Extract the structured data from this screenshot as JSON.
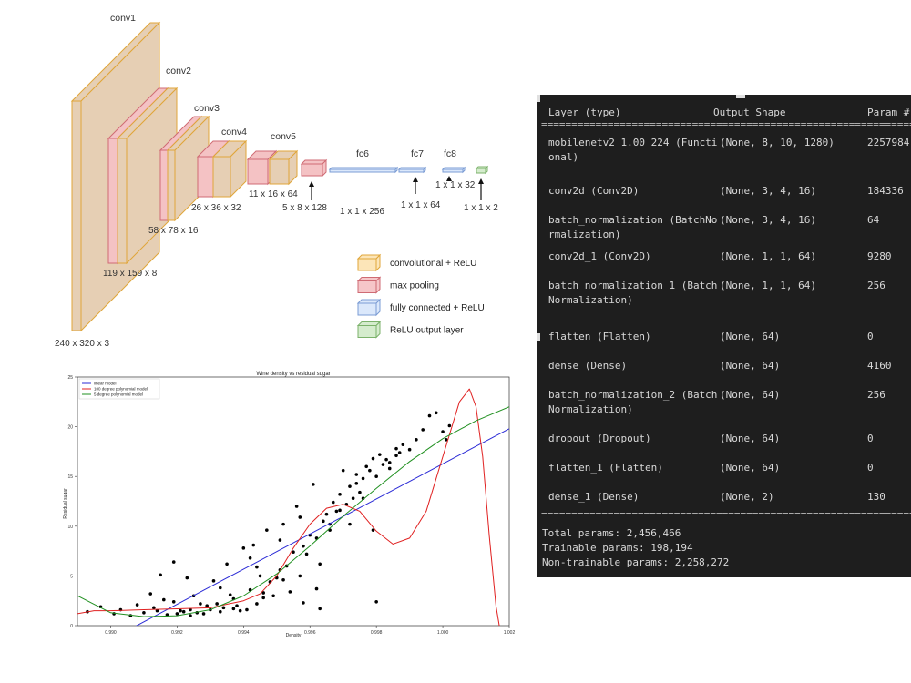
{
  "architecture": {
    "layers": [
      {
        "name": "conv1",
        "size": "240 x 320 x 3"
      },
      {
        "name": "conv2",
        "size": "119 x 159 x 8"
      },
      {
        "name": "conv3",
        "size": "58 x 78 x 16"
      },
      {
        "name": "conv4",
        "size": "26 x 36 x 32"
      },
      {
        "name": "conv5",
        "size": "11 x 16 x 64"
      },
      {
        "name": "",
        "size": "5 x 8 x 128"
      },
      {
        "name": "fc6",
        "size": "1 x 1 x 256"
      },
      {
        "name": "fc7",
        "size": "1 x 1 x 64"
      },
      {
        "name": "fc8",
        "size": "1 x 1 x 32"
      },
      {
        "name": "",
        "size": "1 x 1 x 2"
      }
    ],
    "legend": [
      {
        "label": "convolutional + ReLU",
        "color": "#fce5b8",
        "stroke": "#e0a63a"
      },
      {
        "label": "max pooling",
        "color": "#f6c6c9",
        "stroke": "#cf6b74"
      },
      {
        "label": "fully connected + ReLU",
        "color": "#dbe8fb",
        "stroke": "#7b9cd4"
      },
      {
        "label": "ReLU output layer",
        "color": "#d5eccd",
        "stroke": "#7cb26b"
      }
    ],
    "colors": {
      "conv_face": "#e6cfb4",
      "conv_edge": "#e0a63a",
      "pool_face": "#f4c2c4",
      "pool_edge": "#cf6b74"
    }
  },
  "chart_data": {
    "type": "scatter",
    "title": "Wine density vs residual sugar",
    "xlabel": "Density",
    "ylabel": "Residual sugar",
    "xlim": [
      0.989,
      1.002
    ],
    "ylim": [
      0,
      25
    ],
    "x_ticks": [
      "0.990",
      "0.992",
      "0.994",
      "0.996",
      "0.998",
      "1.000",
      "1.002"
    ],
    "y_ticks": [
      "0",
      "5",
      "10",
      "15",
      "20",
      "25"
    ],
    "legend_position": "top-left",
    "grid": false,
    "series": [
      {
        "name": "linear model",
        "type": "line",
        "color": "#2b2bd6",
        "x": [
          0.9905,
          1.002
        ],
        "y": [
          -0.5,
          19.8
        ]
      },
      {
        "name": "100 degree polynomial model",
        "type": "line",
        "color": "#e02020",
        "x": [
          0.989,
          0.9895,
          0.99,
          0.991,
          0.992,
          0.993,
          0.994,
          0.9945,
          0.995,
          0.9955,
          0.996,
          0.9965,
          0.997,
          0.9975,
          0.998,
          0.9985,
          0.999,
          0.9995,
          1.0,
          1.0005,
          1.0008,
          1.001,
          1.0012,
          1.0014,
          1.0016,
          1.0017
        ],
        "y": [
          1.2,
          1.5,
          1.5,
          1.6,
          1.7,
          1.8,
          2.5,
          3.2,
          5.0,
          7.8,
          10.2,
          11.8,
          12.2,
          11.5,
          9.5,
          8.2,
          8.8,
          11.5,
          17.0,
          22.5,
          23.8,
          22.0,
          17.0,
          9.0,
          2.0,
          0
        ]
      },
      {
        "name": "5 degree polynomial model",
        "type": "line",
        "color": "#209020",
        "x": [
          0.989,
          0.99,
          0.991,
          0.992,
          0.993,
          0.994,
          0.995,
          0.996,
          0.997,
          0.998,
          0.999,
          1.0,
          1.001,
          1.002
        ],
        "y": [
          3.0,
          1.3,
          0.9,
          1.0,
          1.6,
          3.0,
          5.2,
          8.0,
          11.0,
          13.8,
          16.5,
          18.8,
          20.6,
          22.0
        ]
      },
      {
        "name": "",
        "type": "scatter",
        "color": "#000000",
        "x": [
          0.9893,
          0.9897,
          0.9901,
          0.9903,
          0.9906,
          0.9908,
          0.991,
          0.9912,
          0.9914,
          0.9915,
          0.9917,
          0.9919,
          0.992,
          0.9921,
          0.9923,
          0.9924,
          0.9925,
          0.9926,
          0.9928,
          0.993,
          0.9931,
          0.9932,
          0.9933,
          0.9934,
          0.9935,
          0.9936,
          0.9937,
          0.9938,
          0.994,
          0.9941,
          0.9942,
          0.9943,
          0.9944,
          0.9945,
          0.9946,
          0.9947,
          0.9948,
          0.9949,
          0.995,
          0.9951,
          0.9952,
          0.9953,
          0.9954,
          0.9955,
          0.9956,
          0.9957,
          0.9958,
          0.9959,
          0.996,
          0.9961,
          0.9962,
          0.9963,
          0.9964,
          0.9965,
          0.9966,
          0.9967,
          0.9968,
          0.9969,
          0.997,
          0.9971,
          0.9972,
          0.9973,
          0.9974,
          0.9975,
          0.9976,
          0.9977,
          0.9978,
          0.9979,
          0.998,
          0.9981,
          0.9982,
          0.9984,
          0.9986,
          0.9988,
          0.999,
          0.9992,
          0.9994,
          0.9996,
          0.9998,
          1.0,
          1.0001,
          1.0002,
          0.9913,
          0.9916,
          0.9922,
          0.9927,
          0.9933,
          0.9939,
          0.9942,
          0.9946,
          0.9952,
          0.9958,
          0.9962,
          0.9966,
          0.9972,
          0.9976,
          0.998,
          0.9983,
          0.9986,
          0.9924,
          0.9919,
          0.9929,
          0.9937,
          0.9944,
          0.9951,
          0.9957,
          0.9963,
          0.9969,
          0.9974,
          0.9979,
          0.9984,
          0.9987
        ],
        "y": [
          1.4,
          1.9,
          1.2,
          1.6,
          1.0,
          2.1,
          1.3,
          3.2,
          1.5,
          5.1,
          1.1,
          2.4,
          1.2,
          1.5,
          4.8,
          1.0,
          3.0,
          1.3,
          1.2,
          1.6,
          4.5,
          2.2,
          1.4,
          1.8,
          6.2,
          3.1,
          1.7,
          2.0,
          7.8,
          1.6,
          3.6,
          8.1,
          2.2,
          5.0,
          2.8,
          9.6,
          4.4,
          3.0,
          4.8,
          5.6,
          10.2,
          6.0,
          3.4,
          7.4,
          12.0,
          5.0,
          8.0,
          7.2,
          9.1,
          14.2,
          8.8,
          1.7,
          10.5,
          11.2,
          10.2,
          12.4,
          11.5,
          13.2,
          15.6,
          12.2,
          14.0,
          12.8,
          15.2,
          13.4,
          14.8,
          16.0,
          15.6,
          16.8,
          15.0,
          17.2,
          16.2,
          16.4,
          17.1,
          18.2,
          17.7,
          18.7,
          19.7,
          21.1,
          21.4,
          19.5,
          18.7,
          20.1,
          1.8,
          2.6,
          1.4,
          2.2,
          3.8,
          1.5,
          6.8,
          3.3,
          4.6,
          2.3,
          3.7,
          9.6,
          10.2,
          12.8,
          2.4,
          16.7,
          17.8,
          1.6,
          6.4,
          2.0,
          2.7,
          5.9,
          8.6,
          10.9,
          6.2,
          11.6,
          14.3,
          9.6,
          15.8,
          17.4
        ]
      }
    ]
  },
  "summary": {
    "headers": [
      "Layer (type)",
      "Output Shape",
      "Param #"
    ],
    "separator_double": "==================================================================",
    "separator_single": "__________________________________________________________________",
    "rows": [
      {
        "layer": "mobilenetv2_1.00_224 (Functional)",
        "shape": "(None, 8, 10, 1280)",
        "params": "2257984"
      },
      {
        "layer": "conv2d (Conv2D)",
        "shape": "(None, 3, 4, 16)",
        "params": "184336"
      },
      {
        "layer": "batch_normalization (BatchNormalization)",
        "shape": "(None, 3, 4, 16)",
        "params": "64"
      },
      {
        "layer": "conv2d_1 (Conv2D)",
        "shape": "(None, 1, 1, 64)",
        "params": "9280"
      },
      {
        "layer": "batch_normalization_1 (BatchNormalization)",
        "shape": "(None, 1, 1, 64)",
        "params": "256"
      },
      {
        "layer": "flatten (Flatten)",
        "shape": "(None, 64)",
        "params": "0"
      },
      {
        "layer": "dense (Dense)",
        "shape": "(None, 64)",
        "params": "4160"
      },
      {
        "layer": "batch_normalization_2 (BatchNormalization)",
        "shape": "(None, 64)",
        "params": "256"
      },
      {
        "layer": "dropout (Dropout)",
        "shape": "(None, 64)",
        "params": "0"
      },
      {
        "layer": "flatten_1 (Flatten)",
        "shape": "(None, 64)",
        "params": "0"
      },
      {
        "layer": "dense_1 (Dense)",
        "shape": "(None, 2)",
        "params": "130"
      }
    ],
    "totals": [
      "Total params: 2,456,466",
      "Trainable params: 198,194",
      "Non-trainable params: 2,258,272"
    ]
  }
}
